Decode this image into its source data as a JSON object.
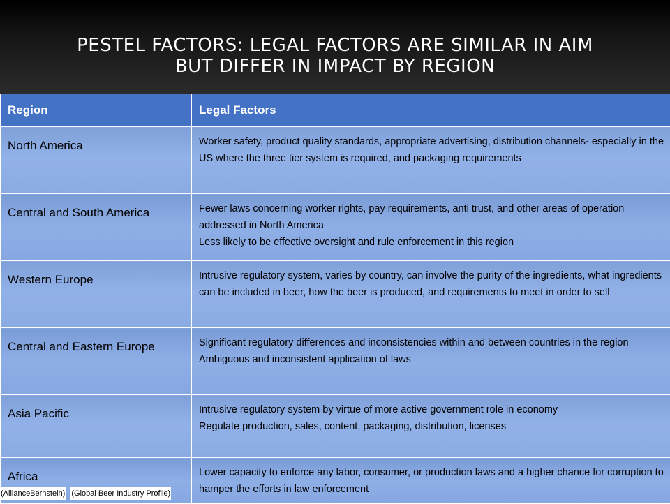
{
  "slide": {
    "title_lines": [
      "PESTEL FACTORS: LEGAL FACTORS ARE SIMILAR IN AIM",
      "BUT DIFFER IN IMPACT BY REGION"
    ]
  },
  "table": {
    "headers": [
      "Region",
      "Legal Factors"
    ],
    "rows": [
      {
        "region": "North America",
        "lines": [
          "Worker safety, product quality standards, appropriate advertising, distribution channels- especially in the US where the three tier system is required, and packaging requirements"
        ]
      },
      {
        "region": "Central and South America",
        "lines": [
          "Fewer laws concerning worker rights, pay requirements, anti trust, and other areas of operation addressed in North America",
          "Less likely to be effective oversight and rule enforcement in this region"
        ]
      },
      {
        "region": "Western Europe",
        "lines": [
          "Intrusive regulatory system, varies by country, can involve the purity of the ingredients, what ingredients can be included in beer, how the beer is produced, and requirements to meet in order to sell"
        ]
      },
      {
        "region": "Central and Eastern Europe",
        "lines": [
          "Significant regulatory differences and inconsistencies within and between countries in the region",
          "Ambiguous and inconsistent application of laws"
        ]
      },
      {
        "region": "Asia Pacific",
        "lines": [
          "Intrusive regulatory system by virtue of more active government role in economy",
          "Regulate production, sales, content, packaging, distribution, licenses"
        ]
      },
      {
        "region": "Africa",
        "lines": [
          "Lower capacity to enforce any labor, consumer, or production laws and a higher chance for corruption to hamper the efforts in law enforcement"
        ]
      }
    ]
  },
  "footer": {
    "citations": [
      "(AllianceBernstein)",
      "(Global Beer Industry Profile)"
    ]
  }
}
